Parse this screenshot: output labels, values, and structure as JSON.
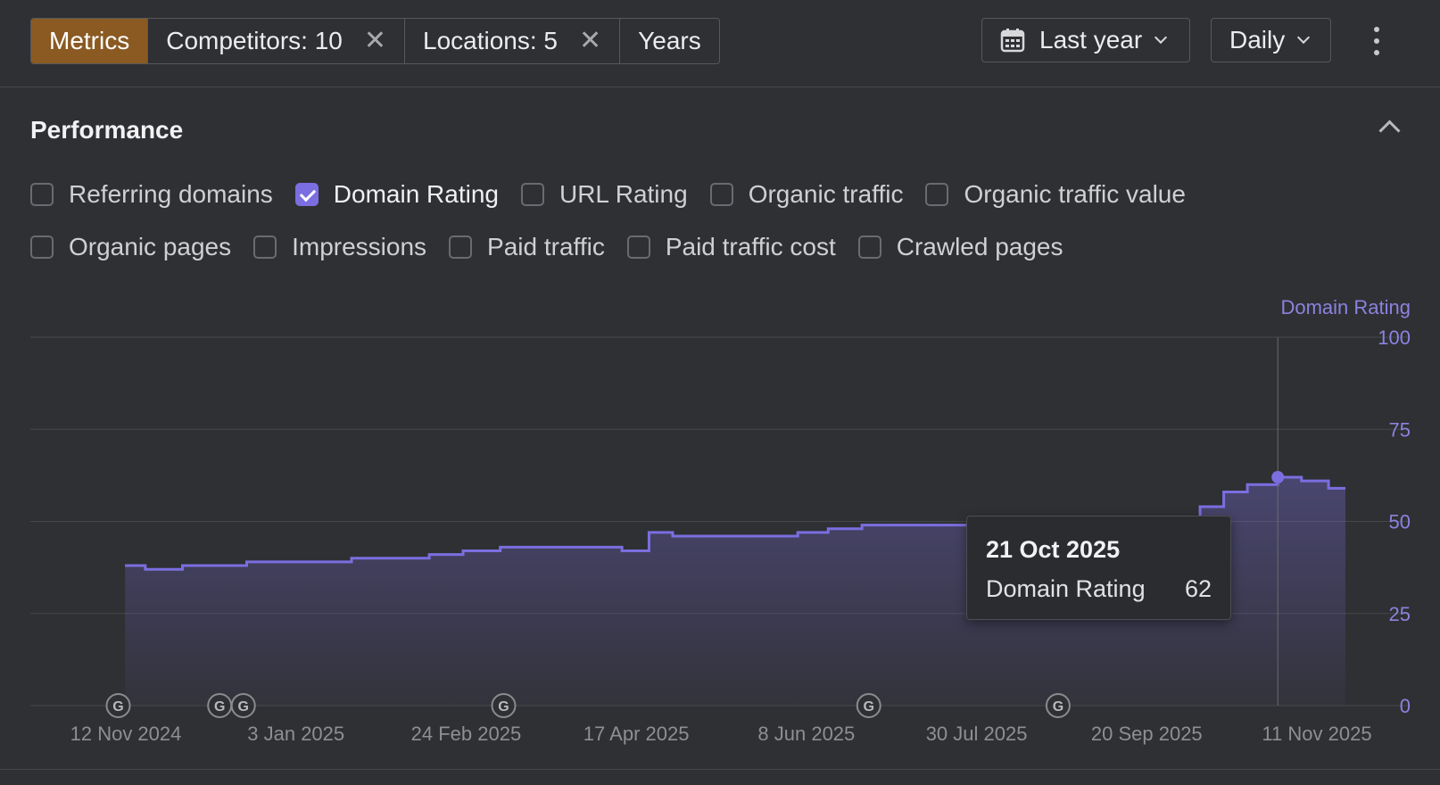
{
  "toolbar": {
    "tabs": [
      {
        "label": "Metrics",
        "active": true
      },
      {
        "label": "Competitors: 10",
        "removable": true
      },
      {
        "label": "Locations: 5",
        "removable": true
      },
      {
        "label": "Years"
      }
    ],
    "date_range": "Last year",
    "granularity": "Daily",
    "icons": {
      "calendar": "calendar-icon",
      "more": "more-vertical-icon",
      "remove": "close-icon"
    }
  },
  "performance": {
    "title": "Performance",
    "metrics_row1": [
      {
        "label": "Referring domains",
        "checked": false
      },
      {
        "label": "Domain Rating",
        "checked": true
      },
      {
        "label": "URL Rating",
        "checked": false
      },
      {
        "label": "Organic traffic",
        "checked": false
      },
      {
        "label": "Organic traffic value",
        "checked": false
      }
    ],
    "metrics_row2": [
      {
        "label": "Organic pages",
        "checked": false
      },
      {
        "label": "Impressions",
        "checked": false
      },
      {
        "label": "Paid traffic",
        "checked": false
      },
      {
        "label": "Paid traffic cost",
        "checked": false
      },
      {
        "label": "Crawled pages",
        "checked": false
      }
    ]
  },
  "colors": {
    "accent": "#7b6ee0",
    "active_tab": "#8a5a22",
    "background": "#2f3033"
  },
  "tooltip": {
    "date": "21 Oct 2025",
    "metric": "Domain Rating",
    "value": "62"
  },
  "chart_data": {
    "type": "area",
    "series": [
      {
        "name": "Domain Rating",
        "x": [
          "2024-11-14",
          "2024-11-20",
          "2024-12-01",
          "2024-12-10",
          "2024-12-20",
          "2025-01-05",
          "2025-01-20",
          "2025-02-01",
          "2025-02-12",
          "2025-02-22",
          "2025-03-05",
          "2025-03-25",
          "2025-04-10",
          "2025-04-18",
          "2025-04-25",
          "2025-05-15",
          "2025-06-01",
          "2025-06-10",
          "2025-06-20",
          "2025-07-01",
          "2025-07-10",
          "2025-07-25",
          "2025-08-10",
          "2025-08-25",
          "2025-09-10",
          "2025-09-20",
          "2025-09-28",
          "2025-10-05",
          "2025-10-12",
          "2025-10-21",
          "2025-10-28",
          "2025-11-05",
          "2025-11-10"
        ],
        "values": [
          38,
          37,
          38,
          38,
          39,
          39,
          40,
          40,
          41,
          42,
          43,
          43,
          42,
          47,
          46,
          46,
          47,
          48,
          49,
          49,
          49,
          48,
          48,
          49,
          51,
          51,
          54,
          58,
          60,
          62,
          61,
          59,
          59
        ]
      }
    ],
    "xlabel": "",
    "ylabel": "Domain Rating",
    "x_ticks": [
      "12 Nov 2024",
      "3 Jan 2025",
      "24 Feb 2025",
      "17 Apr 2025",
      "8 Jun 2025",
      "30 Jul 2025",
      "20 Sep 2025",
      "11 Nov 2025"
    ],
    "y_ticks": [
      0,
      25,
      50,
      75,
      100
    ],
    "ylim": [
      0,
      100
    ],
    "xlim": [
      "2024-10-17",
      "2025-11-29"
    ],
    "grid": true,
    "y_axis_side": "right",
    "event_markers": [
      {
        "date": "2024-11-12",
        "label": "G"
      },
      {
        "date": "2024-12-12",
        "label": "G"
      },
      {
        "date": "2024-12-19",
        "label": "G"
      },
      {
        "date": "2025-03-06",
        "label": "G"
      },
      {
        "date": "2025-06-22",
        "label": "G"
      },
      {
        "date": "2025-08-17",
        "label": "G"
      }
    ],
    "highlight_date": "2025-10-21"
  }
}
